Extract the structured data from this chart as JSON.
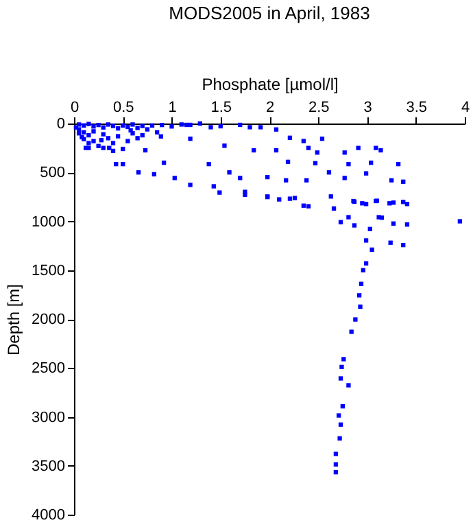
{
  "chart_data": {
    "type": "scatter",
    "title": "MODS2005 in April, 1983",
    "xlabel": "Phosphate [µmol/l]",
    "ylabel": "Depth [m]",
    "xlim": [
      0,
      4
    ],
    "xticks": [
      0,
      0.5,
      1,
      1.5,
      2,
      2.5,
      3,
      3.5,
      4
    ],
    "ylim": [
      4000,
      0
    ],
    "yticks": [
      0,
      500,
      1000,
      1500,
      2000,
      2500,
      3000,
      3500,
      4000
    ],
    "grid": false,
    "marker": "square",
    "series": [
      {
        "color": "#0000ff",
        "x": [
          0.05,
          0.1,
          0.15,
          0.2,
          0.25,
          0.3,
          0.35,
          0.4,
          0.45,
          0.5,
          0.55,
          0.6,
          0.65,
          0.7,
          0.75,
          0.8,
          0.9,
          1.0,
          1.1,
          0.05,
          0.1,
          0.15,
          0.2,
          0.3,
          0.35,
          0.1,
          0.15,
          0.2,
          0.25,
          0.3,
          0.4,
          0.5,
          0.6,
          0.45,
          0.55,
          0.65,
          0.05,
          0.02,
          0.08,
          0.12,
          0.4,
          0.28,
          0.58,
          0.7,
          0.85,
          1.15,
          1.29,
          1.4,
          1.5,
          1.7,
          1.8,
          1.91,
          2.07,
          2.21,
          2.54,
          2.35,
          1.19,
          1.54,
          1.84,
          2.07,
          2.4,
          2.49,
          2.77,
          2.91,
          3.09,
          3.14,
          2.19,
          2.47,
          2.81,
          3.04,
          3.32,
          1.38,
          0.92,
          0.5,
          0.66,
          0.82,
          1.03,
          1.19,
          1.43,
          1.59,
          1.7,
          1.98,
          2.17,
          2.38,
          2.61,
          2.77,
          2.99,
          3.25,
          3.37,
          1.75,
          1.98,
          2.21,
          2.35,
          2.63,
          2.86,
          2.95,
          3.09,
          3.23,
          3.37,
          2.81,
          3.12,
          0.36,
          0.15,
          0.43,
          0.73,
          0.89,
          1.19,
          1.49,
          1.75,
          1.98,
          2.1,
          2.26,
          2.4,
          2.66,
          2.87,
          2.99,
          3.1,
          3.27,
          3.41,
          2.73,
          2.87,
          3.03,
          3.15,
          3.27,
          3.41,
          3.95,
          2.99,
          3.05,
          3.24,
          3.37,
          2.99,
          2.96,
          2.94,
          2.92,
          2.93,
          2.88,
          2.84,
          2.76,
          2.74,
          2.73,
          2.81,
          2.75,
          2.71,
          2.73,
          2.72,
          2.68,
          2.68,
          2.68
        ],
        "values": [
          10,
          20,
          5,
          30,
          15,
          40,
          10,
          25,
          50,
          20,
          35,
          10,
          45,
          25,
          60,
          20,
          15,
          30,
          10,
          60,
          90,
          120,
          80,
          110,
          150,
          160,
          200,
          180,
          230,
          250,
          200,
          260,
          100,
          130,
          180,
          150,
          100,
          40,
          140,
          250,
          280,
          170,
          70,
          120,
          90,
          14,
          0,
          38,
          28,
          14,
          38,
          38,
          61,
          146,
          156,
          179,
          156,
          227,
          274,
          274,
          250,
          297,
          297,
          250,
          250,
          274,
          392,
          406,
          415,
          401,
          415,
          415,
          401,
          415,
          500,
          519,
          557,
          628,
          642,
          500,
          557,
          548,
          581,
          581,
          500,
          557,
          510,
          581,
          595,
          699,
          746,
          769,
          840,
          746,
          793,
          816,
          793,
          816,
          802,
          958,
          958,
          250,
          250,
          415,
          274,
          132,
          14,
          706,
          729,
          752,
          776,
          762,
          846,
          869,
          799,
          823,
          790,
          809,
          823,
          1009,
          1042,
          1079,
          963,
          1023,
          1033,
          1000,
          1196,
          1290,
          1219,
          1243,
          1430,
          1500,
          1640,
          1757,
          1873,
          2004,
          2130,
          2410,
          2490,
          2607,
          2677,
          2892,
          2986,
          3079,
          3220,
          3379,
          3486,
          3566
        ]
      }
    ]
  }
}
